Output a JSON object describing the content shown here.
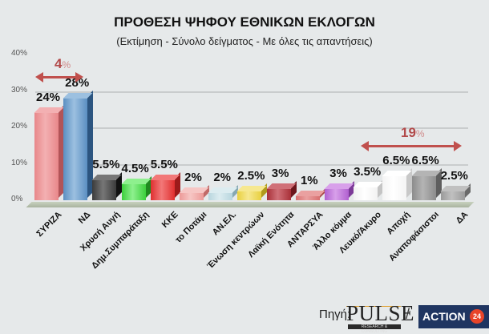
{
  "title": "ΠΡΟΘΕΣΗ ΨΗΦΟΥ ΕΘΝΙΚΩΝ ΕΚΛΟΓΩΝ",
  "subtitle": "(Εκτίμηση - Σύνολο δείγματος - Με όλες τις απαντήσεις)",
  "y_ticks": [
    "40%",
    "30%",
    "20%",
    "10%",
    "0%"
  ],
  "annotations": {
    "gap_left": {
      "value": "4",
      "unit": "%"
    },
    "gap_right": {
      "value": "19",
      "unit": "%"
    }
  },
  "bars": [
    {
      "label": "ΣΥΡΙΖΑ",
      "value_label": "24%",
      "front": "#e8878a",
      "side": "#b25458",
      "top": "#f3b0b2"
    },
    {
      "label": "ΝΔ",
      "value_label": "28%",
      "front": "#5b8fc2",
      "side": "#2c5580",
      "top": "#9cc0e0"
    },
    {
      "label": "Χρυσή Αυγή",
      "value_label": "5.5%",
      "front": "#3a3a3a",
      "side": "#111111",
      "top": "#777777"
    },
    {
      "label": "Δημ.Συμπαράταξη",
      "value_label": "4.5%",
      "front": "#3ccf3c",
      "side": "#1f8a1f",
      "top": "#8ef08e"
    },
    {
      "label": "ΚΚΕ",
      "value_label": "5.5%",
      "front": "#e03030",
      "side": "#9c1a1a",
      "top": "#f27878"
    },
    {
      "label": "το Ποτάμι",
      "value_label": "2%",
      "front": "#ec9a98",
      "side": "#c06a68",
      "top": "#f6c6c4"
    },
    {
      "label": "ΑΝ.ΕΛ.",
      "value_label": "2%",
      "front": "#b8d6de",
      "side": "#86a8b2",
      "top": "#dcecf0"
    },
    {
      "label": "Ένωση κεντρώων",
      "value_label": "2.5%",
      "front": "#e8d040",
      "side": "#b09a1c",
      "top": "#f6e890"
    },
    {
      "label": "Λαϊκή Ενότητα",
      "value_label": "3%",
      "front": "#a83038",
      "side": "#6c161c",
      "top": "#d07078"
    },
    {
      "label": "ΑΝΤΑΡΣΥΑ",
      "value_label": "1%",
      "front": "#d87070",
      "side": "#a84848",
      "top": "#eaa0a0"
    },
    {
      "label": "Άλλο κόμμα",
      "value_label": "3%",
      "front": "#b060d0",
      "side": "#7c3a98",
      "top": "#d8a0ea"
    },
    {
      "label": "Λευκό/Άκυρο",
      "value_label": "3.5%",
      "front": "#f2f2f2",
      "side": "#c4c4c4",
      "top": "#ffffff"
    },
    {
      "label": "Αποχή",
      "value_label": "6.5%",
      "front": "#f4f4f4",
      "side": "#c8c8c8",
      "top": "#ffffff"
    },
    {
      "label": "Αναποφάσιστοι",
      "value_label": "6.5%",
      "front": "#8c8c8c",
      "side": "#5e5e5e",
      "top": "#b4b4b4"
    },
    {
      "label": "ΔΑ",
      "value_label": "2.5%",
      "front": "#9a9a9a",
      "side": "#6a6a6a",
      "top": "#c0c0c0"
    }
  ],
  "footer": {
    "source_label": "Πηγή:",
    "pulse_logo": "PULSE",
    "pulse_sub": "RESEARCH & CONSULTING",
    "separator": "/",
    "action_logo": "ACTION",
    "action_badge": "24"
  },
  "chart_data": {
    "type": "bar",
    "title": "ΠΡΟΘΕΣΗ ΨΗΦΟΥ ΕΘΝΙΚΩΝ ΕΚΛΟΓΩΝ",
    "subtitle": "(Εκτίμηση - Σύνολο δείγματος - Με όλες τις απαντήσεις)",
    "categories": [
      "ΣΥΡΙΖΑ",
      "ΝΔ",
      "Χρυσή Αυγή",
      "Δημ.Συμπαράταξη",
      "ΚΚΕ",
      "το Ποτάμι",
      "ΑΝ.ΕΛ.",
      "Ένωση κεντρώων",
      "Λαϊκή Ενότητα",
      "ΑΝΤΑΡΣΥΑ",
      "Άλλο κόμμα",
      "Λευκό/Άκυρο",
      "Αποχή",
      "Αναποφάσιστοι",
      "ΔΑ"
    ],
    "values": [
      24,
      28,
      5.5,
      4.5,
      5.5,
      2,
      2,
      2.5,
      3,
      1,
      3,
      3.5,
      6.5,
      6.5,
      2.5
    ],
    "xlabel": "",
    "ylabel": "",
    "ylim": [
      0,
      40
    ],
    "yticks": [
      "0%",
      "10%",
      "20%",
      "30%",
      "40%"
    ],
    "grid": true,
    "legend": "none",
    "annotations": [
      {
        "text": "4%",
        "spans": [
          "ΣΥΡΙΖΑ",
          "ΝΔ"
        ],
        "type": "double-arrow"
      },
      {
        "text": "19%",
        "spans": [
          "Λευκό/Άκυρο",
          "ΔΑ"
        ],
        "type": "double-arrow"
      }
    ]
  }
}
